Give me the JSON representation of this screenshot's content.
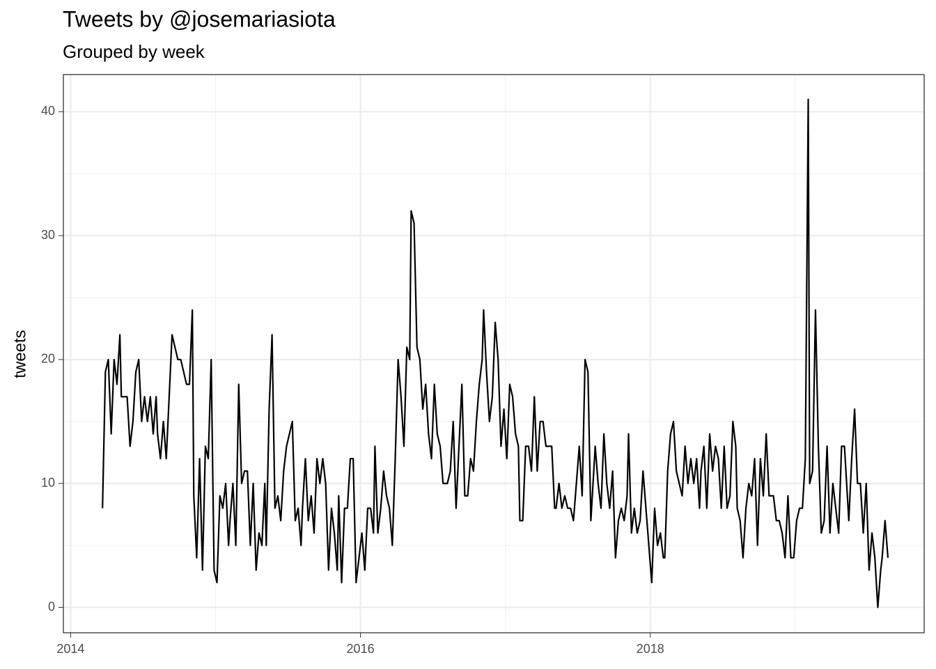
{
  "chart_data": {
    "type": "line",
    "title": "Tweets by @josemariasiota",
    "subtitle": "Grouped by week",
    "y_label": "tweets",
    "color": "#000000",
    "grid": true,
    "x": [
      2014.22,
      2014.24,
      2014.26,
      2014.28,
      2014.3,
      2014.32,
      2014.34,
      2014.35,
      2014.37,
      2014.39,
      2014.41,
      2014.43,
      2014.45,
      2014.47,
      2014.49,
      2014.51,
      2014.53,
      2014.55,
      2014.57,
      2014.59,
      2014.6,
      2014.62,
      2014.64,
      2014.66,
      2014.68,
      2014.7,
      2014.72,
      2014.74,
      2014.76,
      2014.78,
      2014.8,
      2014.82,
      2014.84,
      2014.85,
      2014.87,
      2014.89,
      2014.91,
      2014.93,
      2014.95,
      2014.97,
      2014.99,
      2015.01,
      2015.03,
      2015.05,
      2015.07,
      2015.09,
      2015.1,
      2015.12,
      2015.14,
      2015.16,
      2015.18,
      2015.2,
      2015.22,
      2015.24,
      2015.26,
      2015.28,
      2015.3,
      2015.32,
      2015.34,
      2015.35,
      2015.37,
      2015.39,
      2015.41,
      2015.43,
      2015.45,
      2015.47,
      2015.49,
      2015.51,
      2015.53,
      2015.55,
      2015.57,
      2015.59,
      2015.6,
      2015.62,
      2015.64,
      2015.66,
      2015.68,
      2015.7,
      2015.72,
      2015.74,
      2015.76,
      2015.78,
      2015.8,
      2015.82,
      2015.84,
      2015.85,
      2015.87,
      2015.89,
      2015.91,
      2015.93,
      2015.95,
      2015.97,
      2015.99,
      2016.01,
      2016.03,
      2016.05,
      2016.07,
      2016.09,
      2016.1,
      2016.12,
      2016.14,
      2016.16,
      2016.18,
      2016.2,
      2016.22,
      2016.24,
      2016.26,
      2016.28,
      2016.3,
      2016.32,
      2016.34,
      2016.35,
      2016.37,
      2016.39,
      2016.41,
      2016.43,
      2016.45,
      2016.47,
      2016.49,
      2016.51,
      2016.53,
      2016.55,
      2016.57,
      2016.59,
      2016.6,
      2016.62,
      2016.64,
      2016.66,
      2016.68,
      2016.7,
      2016.72,
      2016.74,
      2016.76,
      2016.78,
      2016.8,
      2016.82,
      2016.84,
      2016.85,
      2016.87,
      2016.89,
      2016.91,
      2016.93,
      2016.95,
      2016.97,
      2016.99,
      2017.01,
      2017.03,
      2017.05,
      2017.07,
      2017.09,
      2017.1,
      2017.12,
      2017.14,
      2017.16,
      2017.18,
      2017.2,
      2017.22,
      2017.24,
      2017.26,
      2017.28,
      2017.3,
      2017.32,
      2017.34,
      2017.35,
      2017.37,
      2017.39,
      2017.41,
      2017.43,
      2017.45,
      2017.47,
      2017.49,
      2017.51,
      2017.53,
      2017.55,
      2017.57,
      2017.59,
      2017.6,
      2017.62,
      2017.64,
      2017.66,
      2017.68,
      2017.7,
      2017.72,
      2017.74,
      2017.76,
      2017.78,
      2017.8,
      2017.82,
      2017.84,
      2017.85,
      2017.87,
      2017.89,
      2017.91,
      2017.93,
      2017.95,
      2017.97,
      2017.99,
      2018.01,
      2018.03,
      2018.05,
      2018.07,
      2018.09,
      2018.1,
      2018.12,
      2018.14,
      2018.16,
      2018.18,
      2018.2,
      2018.22,
      2018.24,
      2018.26,
      2018.28,
      2018.3,
      2018.32,
      2018.34,
      2018.35,
      2018.37,
      2018.39,
      2018.41,
      2018.43,
      2018.45,
      2018.47,
      2018.49,
      2018.51,
      2018.53,
      2018.55,
      2018.57,
      2018.59,
      2018.6,
      2018.62,
      2018.64,
      2018.66,
      2018.68,
      2018.7,
      2018.72,
      2018.74,
      2018.76,
      2018.78,
      2018.8,
      2018.82,
      2018.84,
      2018.85,
      2018.87,
      2018.89,
      2018.91,
      2018.93,
      2018.95,
      2018.97,
      2018.99,
      2019.01,
      2019.03,
      2019.05,
      2019.07,
      2019.09,
      2019.1,
      2019.12,
      2019.14,
      2019.16,
      2019.18,
      2019.2,
      2019.22,
      2019.24,
      2019.26,
      2019.28,
      2019.3,
      2019.32,
      2019.34,
      2019.35,
      2019.37,
      2019.39,
      2019.41,
      2019.43,
      2019.45,
      2019.47,
      2019.49,
      2019.51,
      2019.53,
      2019.55,
      2019.57,
      2019.59,
      2019.6,
      2019.62,
      2019.64
    ],
    "values": [
      8,
      19,
      20,
      14,
      20,
      18,
      22,
      17,
      17,
      17,
      13,
      15,
      19,
      20,
      15,
      17,
      15,
      17,
      14,
      17,
      14,
      12,
      15,
      12,
      17,
      22,
      21,
      20,
      20,
      19,
      18,
      18,
      24,
      9,
      4,
      12,
      3,
      13,
      12,
      20,
      3,
      2,
      9,
      8,
      10,
      5,
      7,
      10,
      5,
      18,
      10,
      11,
      11,
      5,
      10,
      3,
      6,
      5,
      10,
      5,
      16,
      22,
      8,
      9,
      7,
      11,
      13,
      14,
      15,
      7,
      8,
      5,
      8,
      12,
      7,
      9,
      6,
      12,
      10,
      12,
      10,
      3,
      8,
      6,
      3,
      9,
      2,
      8,
      8,
      12,
      12,
      2,
      4,
      6,
      3,
      8,
      8,
      6,
      13,
      6,
      8,
      11,
      9,
      8,
      5,
      12,
      20,
      17,
      13,
      21,
      20,
      32,
      31,
      21,
      20,
      16,
      18,
      14,
      12,
      18,
      14,
      13,
      10,
      10,
      10,
      11,
      15,
      8,
      13,
      18,
      9,
      9,
      12,
      11,
      15,
      18,
      20,
      24,
      19,
      15,
      17,
      23,
      20,
      13,
      16,
      12,
      18,
      17,
      14,
      13,
      7,
      7,
      13,
      13,
      11,
      17,
      11,
      15,
      15,
      13,
      13,
      13,
      8,
      8,
      10,
      8,
      9,
      8,
      8,
      7,
      10,
      13,
      9,
      20,
      19,
      7,
      9,
      13,
      10,
      8,
      14,
      10,
      8,
      11,
      4,
      7,
      8,
      7,
      9,
      14,
      6,
      8,
      6,
      7,
      11,
      8,
      5,
      2,
      8,
      5,
      6,
      4,
      4,
      11,
      14,
      15,
      11,
      10,
      9,
      13,
      10,
      12,
      10,
      12,
      8,
      11,
      13,
      8,
      14,
      11,
      13,
      12,
      8,
      13,
      8,
      9,
      15,
      13,
      8,
      7,
      4,
      8,
      10,
      9,
      12,
      5,
      12,
      9,
      14,
      9,
      9,
      9,
      7,
      7,
      6,
      4,
      9,
      4,
      4,
      7,
      8,
      8,
      12,
      41,
      10,
      11,
      24,
      13,
      6,
      7,
      13,
      6,
      10,
      8,
      6,
      13,
      13,
      11,
      7,
      12,
      16,
      10,
      10,
      6,
      10,
      3,
      6,
      4,
      0,
      3,
      4,
      7,
      4
    ],
    "xlim": [
      2013.95,
      2019.89
    ],
    "xticks": [
      2014,
      2016,
      2018
    ],
    "ylim": [
      -2.05,
      43
    ],
    "yticks": [
      0,
      10,
      20,
      30,
      40
    ]
  }
}
